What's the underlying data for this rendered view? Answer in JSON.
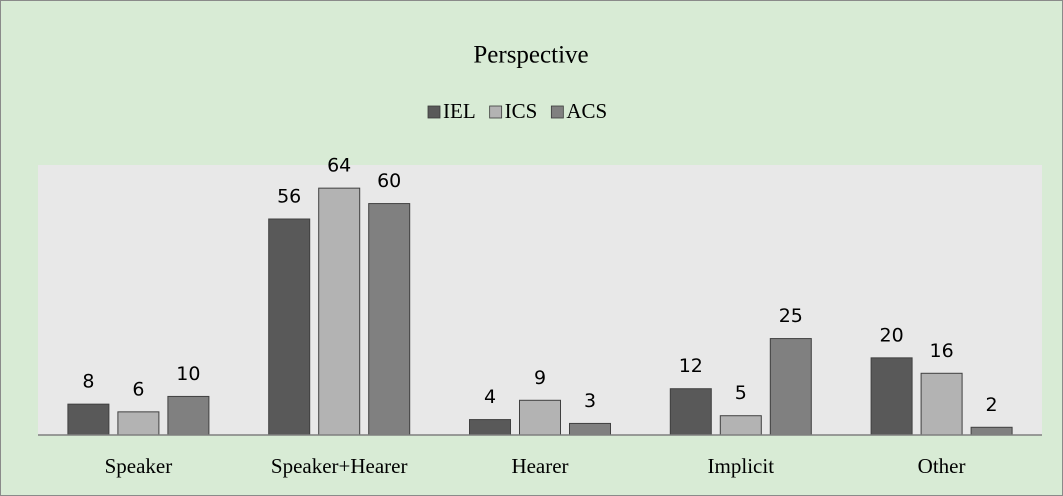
{
  "chart_data": {
    "type": "bar",
    "title": "Perspective",
    "categories": [
      "Speaker",
      "Speaker+Hearer",
      "Hearer",
      "Implicit",
      "Other"
    ],
    "series": [
      {
        "name": "IEL",
        "color": "#595959",
        "values": [
          8,
          56,
          4,
          12,
          20
        ]
      },
      {
        "name": "ICS",
        "color": "#b3b3b3",
        "values": [
          6,
          64,
          9,
          5,
          16
        ]
      },
      {
        "name": "ACS",
        "color": "#808080",
        "values": [
          10,
          60,
          3,
          25,
          2
        ]
      }
    ],
    "ylim": [
      0,
      70
    ],
    "legend": "top"
  }
}
